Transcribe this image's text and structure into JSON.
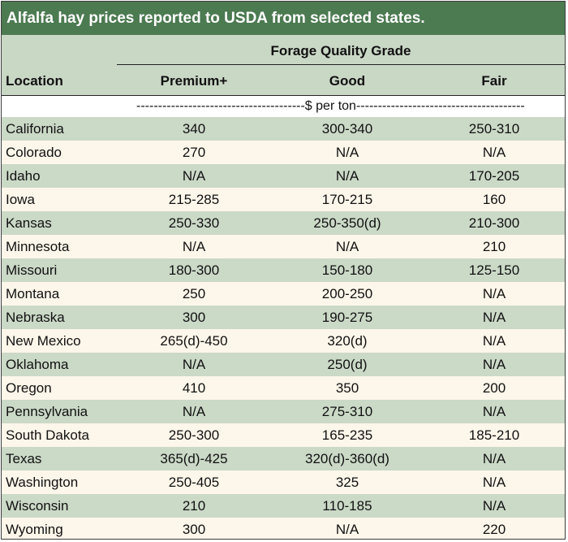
{
  "title": "Alfalfa hay prices reported to USDA from selected states.",
  "header": {
    "group_label": "Forage Quality Grade",
    "location": "Location",
    "premium": "Premium+",
    "good": "Good",
    "fair": "Fair"
  },
  "units": "---------------------------------------$ per ton---------------------------------------",
  "rows": [
    {
      "location": "California",
      "premium": "340",
      "good": "300-340",
      "fair": "250-310"
    },
    {
      "location": "Colorado",
      "premium": "270",
      "good": "N/A",
      "fair": "N/A"
    },
    {
      "location": "Idaho",
      "premium": "N/A",
      "good": "N/A",
      "fair": "170-205"
    },
    {
      "location": "Iowa",
      "premium": "215-285",
      "good": "170-215",
      "fair": "160"
    },
    {
      "location": "Kansas",
      "premium": "250-330",
      "good": "250-350(d)",
      "fair": "210-300"
    },
    {
      "location": "Minnesota",
      "premium": "N/A",
      "good": "N/A",
      "fair": "210"
    },
    {
      "location": "Missouri",
      "premium": "180-300",
      "good": "150-180",
      "fair": "125-150"
    },
    {
      "location": "Montana",
      "premium": "250",
      "good": "200-250",
      "fair": "N/A"
    },
    {
      "location": "Nebraska",
      "premium": "300",
      "good": "190-275",
      "fair": "N/A"
    },
    {
      "location": "New Mexico",
      "premium": "265(d)-450",
      "good": "320(d)",
      "fair": "N/A"
    },
    {
      "location": "Oklahoma",
      "premium": "N/A",
      "good": "250(d)",
      "fair": "N/A"
    },
    {
      "location": "Oregon",
      "premium": "410",
      "good": "350",
      "fair": "200"
    },
    {
      "location": "Pennsylvania",
      "premium": "N/A",
      "good": "275-310",
      "fair": "N/A"
    },
    {
      "location": "South Dakota",
      "premium": "250-300",
      "good": "165-235",
      "fair": "185-210"
    },
    {
      "location": "Texas",
      "premium": "365(d)-425",
      "good": "320(d)-360(d)",
      "fair": "N/A"
    },
    {
      "location": "Washington",
      "premium": "250-405",
      "good": "325",
      "fair": "N/A"
    },
    {
      "location": "Wisconsin",
      "premium": "210",
      "good": "110-185",
      "fair": "N/A"
    },
    {
      "location": "Wyoming",
      "premium": "300",
      "good": "N/A",
      "fair": "220"
    }
  ]
}
